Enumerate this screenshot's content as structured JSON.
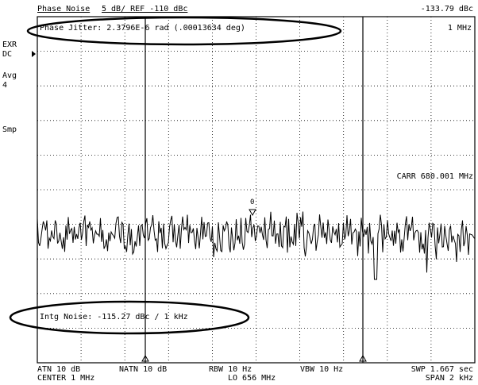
{
  "header": {
    "title": "Phase Noise",
    "scale_ref": "5 dB/ REF -110 dBc",
    "marker_value": "-133.79 dBc"
  },
  "readouts": {
    "phase_jitter": "Phase Jitter: 2.3796E-6 rad (.00013634 deg)",
    "marker_offset": "1 MHz",
    "carrier": "CARR  680.001 MHz",
    "intg_noise": "Intg Noise: -115.27 dBc / 1 kHz"
  },
  "side_labels": {
    "ext": "EXR",
    "dc": "DC",
    "avg": "Avg",
    "avg_count": "4",
    "detector": "Smp"
  },
  "markers": {
    "delta_label": "0"
  },
  "footer": {
    "atn": "ATN 10 dB",
    "natn": "NATN 10 dB",
    "rbw": "RBW 10 Hz",
    "vbw": "VBW 10 Hz",
    "swp": "SWP 1.667 sec",
    "center": "CENTER  1 MHz",
    "lo": "LO  656 MHz",
    "span": "SPAN  2 kHz"
  },
  "colors": {
    "trace": "#000000",
    "grid": "#000000",
    "background": "#ffffff"
  }
}
